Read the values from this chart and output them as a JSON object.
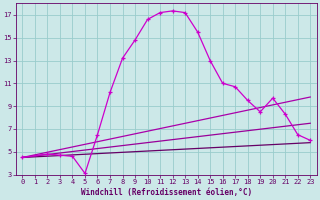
{
  "background_color": "#cce8e8",
  "grid_color": "#99cccc",
  "xlabel": "Windchill (Refroidissement éolien,°C)",
  "xlim": [
    -0.5,
    23.5
  ],
  "ylim": [
    3,
    18
  ],
  "xticks": [
    0,
    1,
    2,
    3,
    4,
    5,
    6,
    7,
    8,
    9,
    10,
    11,
    12,
    13,
    14,
    15,
    16,
    17,
    18,
    19,
    20,
    21,
    22,
    23
  ],
  "yticks": [
    3,
    5,
    7,
    9,
    11,
    13,
    15,
    17
  ],
  "series_main": {
    "x": [
      0,
      2,
      3,
      4,
      5,
      6,
      7,
      8,
      9,
      10,
      11,
      12,
      13,
      14,
      15,
      16,
      17,
      18,
      19,
      20,
      21,
      22,
      23
    ],
    "y": [
      4.5,
      4.8,
      4.7,
      4.6,
      3.1,
      6.5,
      10.2,
      13.2,
      14.8,
      16.6,
      17.2,
      17.35,
      17.2,
      15.5,
      13.0,
      11.0,
      10.7,
      9.5,
      8.5,
      9.7,
      8.3,
      6.5,
      6.0
    ],
    "color": "#cc00cc",
    "linewidth": 0.9,
    "markersize": 3.5
  },
  "series_lines": [
    {
      "x": [
        0,
        23
      ],
      "y": [
        4.5,
        5.8
      ],
      "color": "#660066",
      "linewidth": 0.9
    },
    {
      "x": [
        0,
        23
      ],
      "y": [
        4.5,
        7.5
      ],
      "color": "#990099",
      "linewidth": 0.9
    },
    {
      "x": [
        0,
        23
      ],
      "y": [
        4.5,
        9.8
      ],
      "color": "#aa00aa",
      "linewidth": 0.9
    }
  ],
  "tick_color": "#660066",
  "tick_fontsize": 5,
  "xlabel_fontsize": 5.5,
  "spine_color": "#660066"
}
